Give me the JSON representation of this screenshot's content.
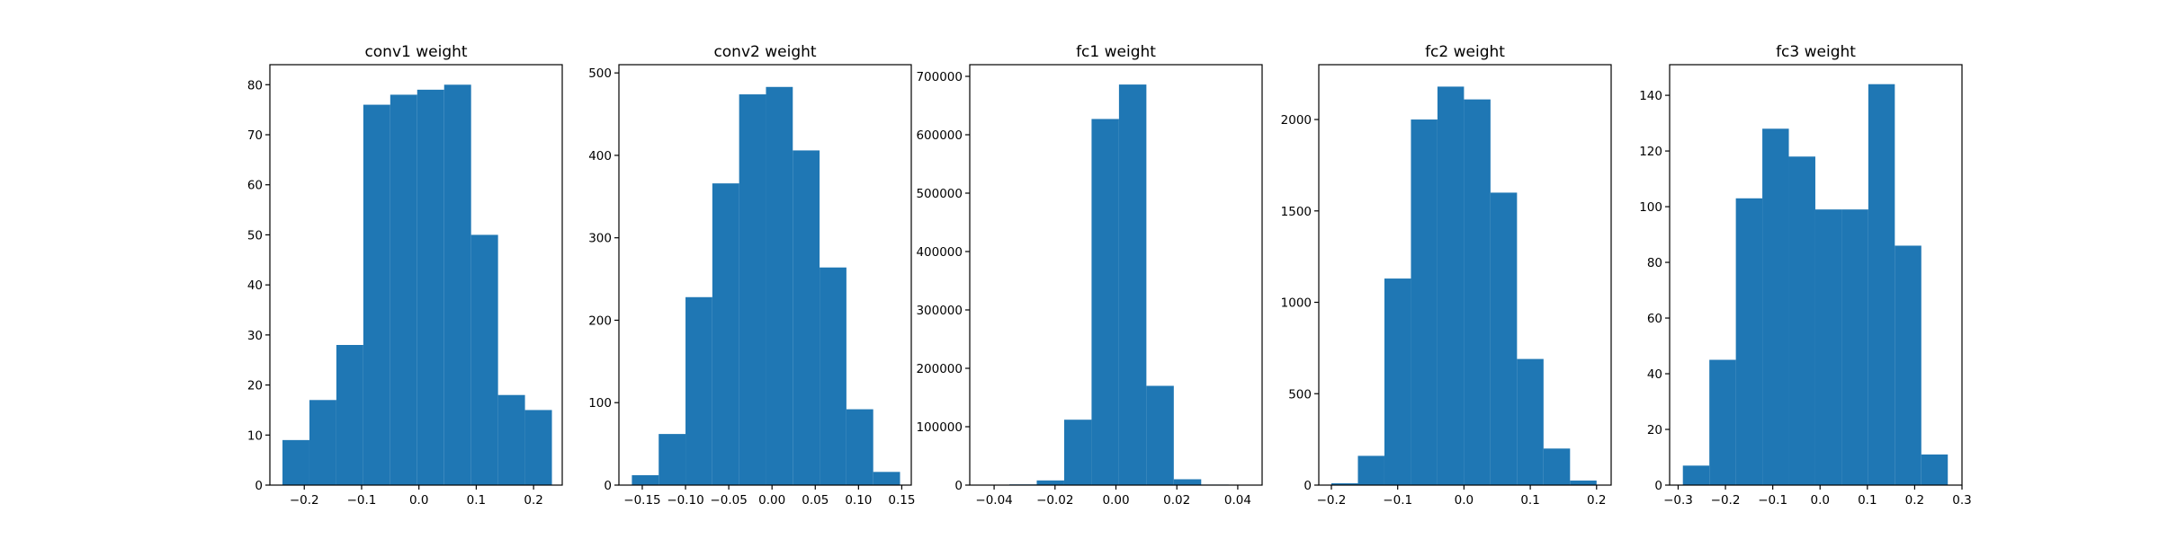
{
  "colors": {
    "bar_fill": "#1f77b4",
    "axis": "#000000",
    "background": "#ffffff"
  },
  "chart_data": [
    {
      "type": "bar",
      "id": "conv1",
      "title": "conv1 weight",
      "xlabel": "",
      "ylabel": "",
      "xlim": [
        -0.26,
        0.25
      ],
      "ylim": [
        0,
        84
      ],
      "xticks": [
        -0.2,
        -0.1,
        0.0,
        0.1,
        0.2
      ],
      "xtick_labels": [
        "−0.2",
        "−0.1",
        "0.0",
        "0.1",
        "0.2"
      ],
      "yticks": [
        0,
        10,
        20,
        30,
        40,
        50,
        60,
        70,
        80
      ],
      "ytick_labels": [
        "0",
        "10",
        "20",
        "30",
        "40",
        "50",
        "60",
        "70",
        "80"
      ],
      "bin_edges": [
        -0.238,
        -0.191,
        -0.144,
        -0.097,
        -0.05,
        -0.003,
        0.044,
        0.091,
        0.138,
        0.185,
        0.232
      ],
      "values": [
        9,
        17,
        28,
        76,
        78,
        79,
        80,
        50,
        18,
        15
      ]
    },
    {
      "type": "bar",
      "id": "conv2",
      "title": "conv2 weight",
      "xlabel": "",
      "ylabel": "",
      "xlim": [
        -0.177,
        0.161
      ],
      "ylim": [
        0,
        510
      ],
      "xticks": [
        -0.15,
        -0.1,
        -0.05,
        0.0,
        0.05,
        0.1,
        0.15
      ],
      "xtick_labels": [
        "−0.15",
        "−0.10",
        "−0.05",
        "0.00",
        "0.05",
        "0.10",
        "0.15"
      ],
      "yticks": [
        0,
        100,
        200,
        300,
        400,
        500
      ],
      "ytick_labels": [
        "0",
        "100",
        "200",
        "300",
        "400",
        "500"
      ],
      "bin_edges": [
        -0.162,
        -0.131,
        -0.1,
        -0.069,
        -0.038,
        -0.007,
        0.024,
        0.055,
        0.086,
        0.117,
        0.148
      ],
      "values": [
        12,
        62,
        228,
        366,
        474,
        483,
        406,
        264,
        92,
        16
      ]
    },
    {
      "type": "bar",
      "id": "fc1",
      "title": "fc1 weight",
      "xlabel": "",
      "ylabel": "",
      "xlim": [
        -0.048,
        0.048
      ],
      "ylim": [
        0,
        720000
      ],
      "xticks": [
        -0.04,
        -0.02,
        0.0,
        0.02,
        0.04
      ],
      "xtick_labels": [
        "−0.04",
        "−0.02",
        "0.00",
        "0.02",
        "0.04"
      ],
      "yticks": [
        0,
        100000,
        200000,
        300000,
        400000,
        500000,
        600000,
        700000
      ],
      "ytick_labels": [
        "0",
        "100000",
        "200000",
        "300000",
        "400000",
        "500000",
        "600000",
        "700000"
      ],
      "bin_edges": [
        -0.044,
        -0.035,
        -0.026,
        -0.017,
        -0.008,
        0.001,
        0.01,
        0.019,
        0.028,
        0.037,
        0.046
      ],
      "values": [
        300,
        1200,
        8000,
        112000,
        627000,
        686000,
        170000,
        10000,
        900,
        200
      ]
    },
    {
      "type": "bar",
      "id": "fc2",
      "title": "fc2 weight",
      "xlabel": "",
      "ylabel": "",
      "xlim": [
        -0.219,
        0.222
      ],
      "ylim": [
        0,
        2300
      ],
      "xticks": [
        -0.2,
        -0.1,
        0.0,
        0.1,
        0.2
      ],
      "xtick_labels": [
        "−0.2",
        "−0.1",
        "0.0",
        "0.1",
        "0.2"
      ],
      "yticks": [
        0,
        500,
        1000,
        1500,
        2000
      ],
      "ytick_labels": [
        "0",
        "500",
        "1000",
        "1500",
        "2000"
      ],
      "bin_edges": [
        -0.2,
        -0.16,
        -0.12,
        -0.08,
        -0.04,
        0.0,
        0.04,
        0.08,
        0.12,
        0.16,
        0.2
      ],
      "values": [
        10,
        160,
        1130,
        2000,
        2180,
        2110,
        1600,
        690,
        200,
        25
      ]
    },
    {
      "type": "bar",
      "id": "fc3",
      "title": "fc3 weight",
      "xlabel": "",
      "ylabel": "",
      "xlim": [
        -0.318,
        0.3
      ],
      "ylim": [
        0,
        151
      ],
      "xticks": [
        -0.3,
        -0.2,
        -0.1,
        0.0,
        0.1,
        0.2,
        0.3
      ],
      "xtick_labels": [
        "−0.3",
        "−0.2",
        "−0.1",
        "0.0",
        "0.1",
        "0.2",
        "0.3"
      ],
      "yticks": [
        0,
        20,
        40,
        60,
        80,
        100,
        120,
        140
      ],
      "ytick_labels": [
        "0",
        "20",
        "40",
        "60",
        "80",
        "100",
        "120",
        "140"
      ],
      "bin_edges": [
        -0.29,
        -0.234,
        -0.178,
        -0.122,
        -0.066,
        -0.01,
        0.046,
        0.102,
        0.158,
        0.214,
        0.27
      ],
      "values": [
        7,
        45,
        103,
        128,
        118,
        99,
        99,
        144,
        86,
        11
      ]
    }
  ]
}
